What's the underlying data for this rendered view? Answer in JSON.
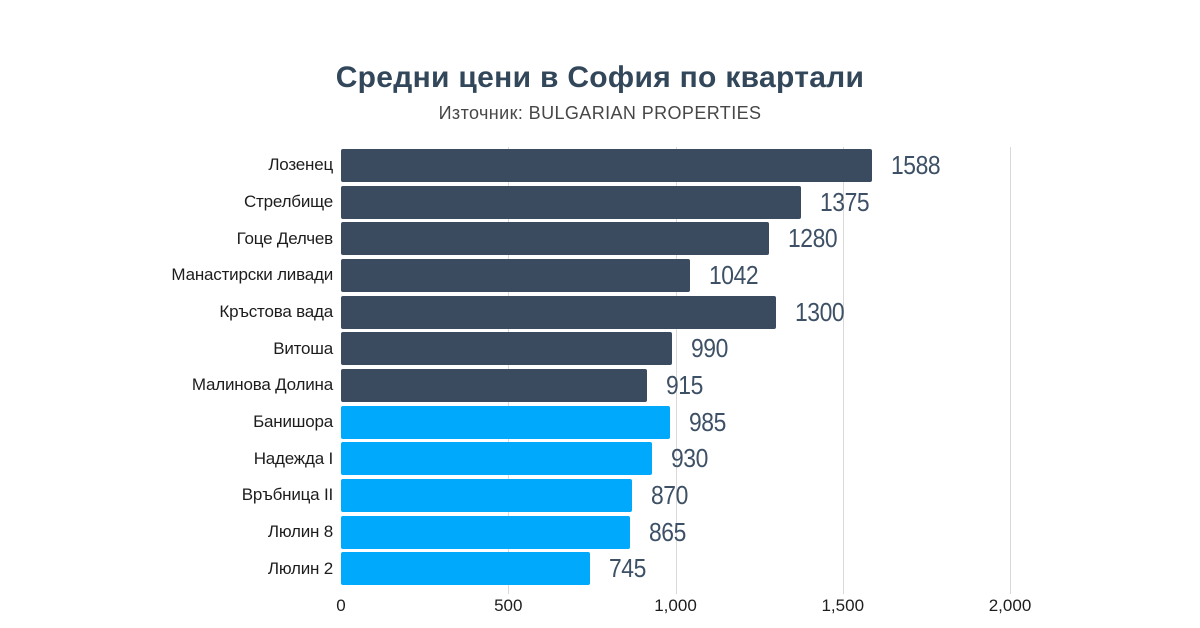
{
  "header": {
    "title": "Средни цени в София по квартали",
    "subtitle": "Източник: BULGARIAN PROPERTIES"
  },
  "colors": {
    "title": "#33475B",
    "subtitle": "#474747",
    "dark_bar": "#3A4B5F",
    "blue_bar": "#00A9FB",
    "value_label": "#3D5065",
    "category_label": "#1D1D1D",
    "axis_label": "#1D1D1D",
    "gridline": "#D9D9D9",
    "background": "#FFFFFF"
  },
  "chart_data": {
    "type": "bar",
    "orientation": "horizontal",
    "title": "Средни цени в София по квартали",
    "subtitle": "Източник: BULGARIAN PROPERTIES",
    "categories": [
      "Лозенец",
      "Стрелбище",
      "Гоце Делчев",
      "Манастирски ливади",
      "Кръстова вада",
      "Витоша",
      "Малинова Долина",
      "Банишора",
      "Надежда I",
      "Връбница II",
      "Люлин 8",
      "Люлин 2"
    ],
    "values": [
      1588,
      1375,
      1280,
      1042,
      1300,
      990,
      915,
      985,
      930,
      870,
      865,
      745
    ],
    "bar_colors": [
      "#3A4B5F",
      "#3A4B5F",
      "#3A4B5F",
      "#3A4B5F",
      "#3A4B5F",
      "#3A4B5F",
      "#3A4B5F",
      "#00A9FB",
      "#00A9FB",
      "#00A9FB",
      "#00A9FB",
      "#00A9FB"
    ],
    "data_labels": [
      "1588",
      "1375",
      "1280",
      "1042",
      "1300",
      "990",
      "915",
      "985",
      "930",
      "870",
      "865",
      "745"
    ],
    "xlabel": "",
    "ylabel": "",
    "xlim": [
      0,
      2000
    ],
    "x_ticks": [
      {
        "value": 0,
        "label": "0"
      },
      {
        "value": 500,
        "label": "500"
      },
      {
        "value": 1000,
        "label": "1,000"
      },
      {
        "value": 1500,
        "label": "1,500"
      },
      {
        "value": 2000,
        "label": "2,000"
      }
    ],
    "grid": true,
    "legend": false
  }
}
